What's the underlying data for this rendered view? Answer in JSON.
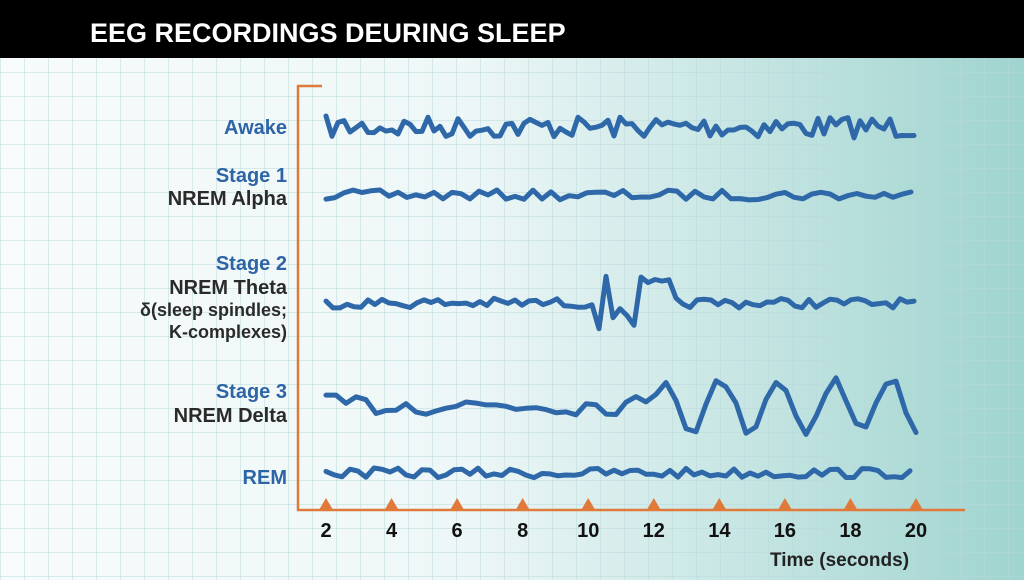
{
  "header": {
    "title": "EEG RECORDINGS DEURING SLEEP"
  },
  "stages": [
    {
      "lines": [
        "Awake"
      ]
    },
    {
      "lines": [
        "Stage 1",
        "NREM Alpha"
      ]
    },
    {
      "lines": [
        "Stage 2",
        "NREM Theta",
        "δ(sleep spindles;",
        "K-complexes)"
      ]
    },
    {
      "lines": [
        "Stage 3",
        "NREM Delta"
      ]
    },
    {
      "lines": [
        "REM"
      ]
    }
  ],
  "x_axis": {
    "ticks": [
      2,
      4,
      6,
      8,
      10,
      12,
      14,
      16,
      18,
      20
    ],
    "label": "Time (seconds)"
  }
}
